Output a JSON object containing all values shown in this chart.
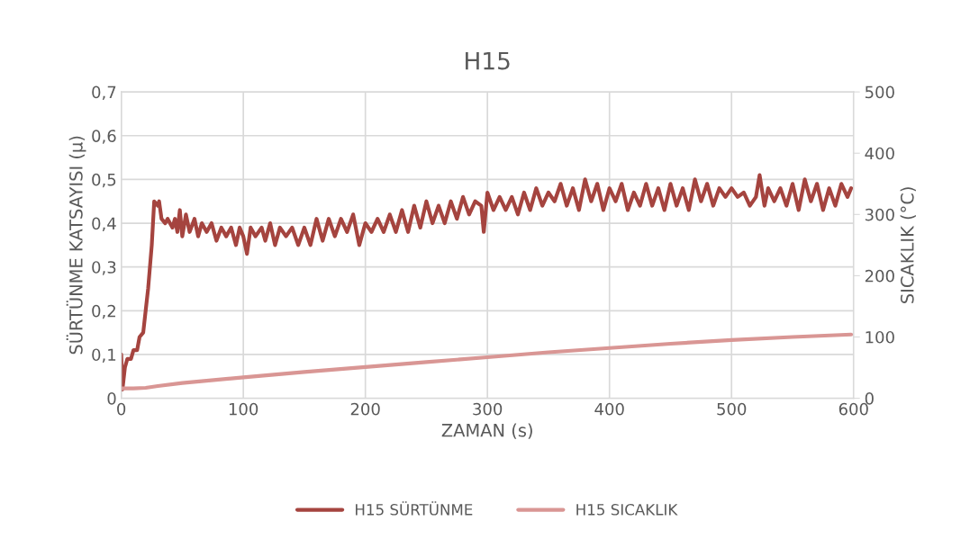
{
  "chart_data": {
    "type": "line",
    "title": "H15",
    "xlabel": "ZAMAN (s)",
    "ylabel": "SÜRTÜNME KATSAYISI (µ)",
    "y2label": "SICAKLIK (°C)",
    "xlim": [
      0,
      600
    ],
    "xticks": [
      0,
      100,
      200,
      300,
      400,
      500,
      600
    ],
    "ylim": [
      0,
      0.7
    ],
    "yticks": [
      0,
      {
        "value": 0.1,
        "label": "0,1"
      },
      {
        "value": 0.2,
        "label": "0,2"
      },
      {
        "value": 0.3,
        "label": "0,3"
      },
      {
        "value": 0.4,
        "label": "0,4"
      },
      {
        "value": 0.5,
        "label": "0,5"
      },
      {
        "value": 0.6,
        "label": "0,6"
      },
      {
        "value": 0.7,
        "label": "0,7"
      }
    ],
    "y2lim": [
      0,
      500
    ],
    "y2ticks": [
      0,
      100,
      200,
      300,
      400,
      500
    ],
    "grid": true,
    "legend": "bottom",
    "marker": "none",
    "line_style": "solid",
    "series": [
      {
        "name": "H15 SÜRTÜNME",
        "color": "#a5443f",
        "x": [
          0,
          1,
          3,
          5,
          8,
          10,
          13,
          15,
          18,
          20,
          22,
          25,
          27,
          30,
          31,
          33,
          36,
          38,
          42,
          44,
          46,
          48,
          50,
          53,
          56,
          60,
          63,
          66,
          70,
          74,
          78,
          82,
          86,
          90,
          94,
          97,
          100,
          103,
          106,
          110,
          115,
          118,
          122,
          126,
          130,
          135,
          140,
          145,
          150,
          155,
          160,
          165,
          170,
          175,
          180,
          185,
          190,
          195,
          200,
          205,
          210,
          215,
          220,
          225,
          230,
          235,
          240,
          245,
          250,
          255,
          260,
          265,
          270,
          275,
          280,
          285,
          290,
          295,
          297,
          300,
          305,
          310,
          315,
          320,
          325,
          330,
          335,
          340,
          345,
          350,
          355,
          360,
          365,
          370,
          375,
          380,
          385,
          390,
          395,
          400,
          405,
          410,
          415,
          420,
          425,
          430,
          435,
          440,
          445,
          450,
          455,
          460,
          465,
          470,
          475,
          480,
          485,
          490,
          495,
          500,
          505,
          510,
          515,
          520,
          523,
          527,
          530,
          535,
          540,
          545,
          550,
          555,
          560,
          565,
          570,
          575,
          580,
          585,
          590,
          595,
          598
        ],
        "values": [
          0.1,
          0.02,
          0.07,
          0.09,
          0.09,
          0.11,
          0.11,
          0.14,
          0.15,
          0.2,
          0.25,
          0.35,
          0.45,
          0.44,
          0.45,
          0.41,
          0.4,
          0.41,
          0.39,
          0.41,
          0.38,
          0.43,
          0.37,
          0.42,
          0.38,
          0.41,
          0.37,
          0.4,
          0.38,
          0.4,
          0.36,
          0.39,
          0.37,
          0.39,
          0.35,
          0.39,
          0.37,
          0.33,
          0.39,
          0.37,
          0.39,
          0.36,
          0.4,
          0.35,
          0.39,
          0.37,
          0.39,
          0.35,
          0.39,
          0.35,
          0.41,
          0.36,
          0.41,
          0.37,
          0.41,
          0.38,
          0.42,
          0.35,
          0.4,
          0.38,
          0.41,
          0.38,
          0.42,
          0.38,
          0.43,
          0.38,
          0.44,
          0.39,
          0.45,
          0.4,
          0.44,
          0.4,
          0.45,
          0.41,
          0.46,
          0.42,
          0.45,
          0.44,
          0.38,
          0.47,
          0.43,
          0.46,
          0.43,
          0.46,
          0.42,
          0.47,
          0.43,
          0.48,
          0.44,
          0.47,
          0.45,
          0.49,
          0.44,
          0.48,
          0.43,
          0.5,
          0.45,
          0.49,
          0.43,
          0.48,
          0.45,
          0.49,
          0.43,
          0.47,
          0.44,
          0.49,
          0.44,
          0.48,
          0.43,
          0.49,
          0.44,
          0.48,
          0.43,
          0.5,
          0.45,
          0.49,
          0.44,
          0.48,
          0.46,
          0.48,
          0.46,
          0.47,
          0.44,
          0.46,
          0.51,
          0.44,
          0.48,
          0.45,
          0.48,
          0.44,
          0.49,
          0.43,
          0.5,
          0.45,
          0.49,
          0.43,
          0.48,
          0.44,
          0.49,
          0.46,
          0.48
        ]
      },
      {
        "name": "H15 SICAKLIK",
        "color": "#d99694",
        "axis": "y2",
        "x": [
          0,
          10,
          20,
          30,
          50,
          100,
          150,
          200,
          250,
          300,
          350,
          400,
          450,
          500,
          550,
          598
        ],
        "values": [
          16,
          16,
          17,
          20,
          25,
          34,
          43,
          51,
          59,
          67,
          75,
          82,
          89,
          95,
          100,
          104
        ]
      }
    ]
  }
}
